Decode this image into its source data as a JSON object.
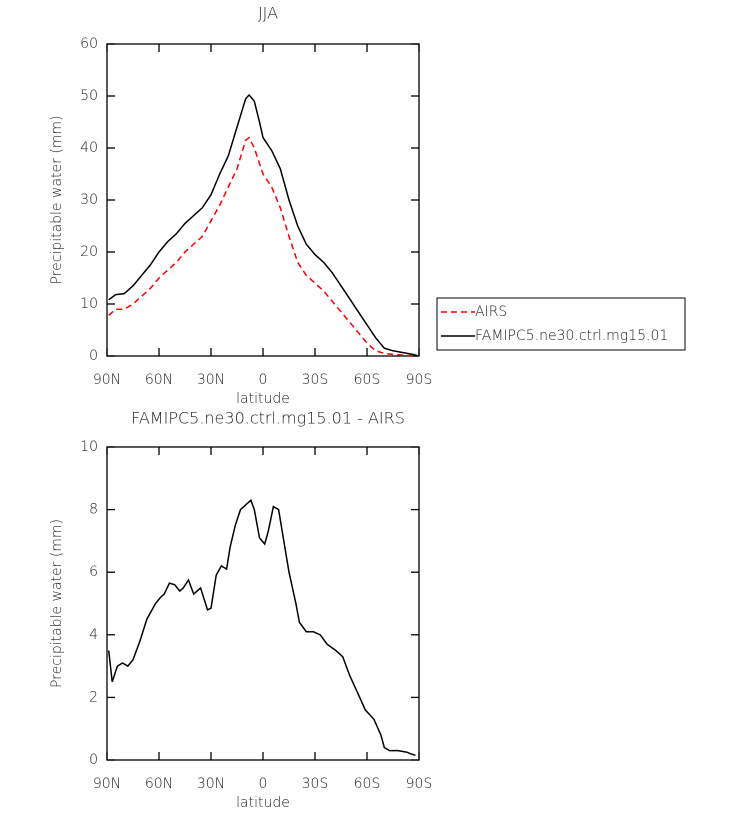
{
  "chart_data": [
    {
      "type": "line",
      "title": "JJA",
      "xlabel": "latitude",
      "ylabel": "Precipitable water (mm)",
      "x": [
        89,
        85,
        80,
        75,
        70,
        65,
        60,
        55,
        50,
        45,
        40,
        35,
        30,
        25,
        20,
        15,
        10,
        8,
        5,
        2,
        0,
        -5,
        -10,
        -15,
        -20,
        -25,
        -30,
        -35,
        -40,
        -45,
        -50,
        -55,
        -60,
        -65,
        -70,
        -75,
        -80,
        -85,
        -89
      ],
      "series": [
        {
          "name": "AIRS",
          "color": "#ff0000",
          "linestyle": "dashed",
          "values": [
            7.8,
            9,
            9,
            10,
            11.5,
            13,
            15,
            16.5,
            18,
            20,
            21.5,
            23,
            26,
            29,
            32.5,
            36,
            41.5,
            42,
            40,
            37,
            35,
            32.5,
            28.5,
            23,
            18,
            15.5,
            14,
            12.5,
            10.5,
            8.5,
            6.5,
            4.5,
            2.5,
            1,
            0.5,
            0.3,
            0.2,
            0.1,
            0
          ]
        },
        {
          "name": "FAMIPC5.ne30.ctrl.mg15.01",
          "color": "#000000",
          "linestyle": "solid",
          "values": [
            10.8,
            11.8,
            12,
            13.5,
            15.5,
            17.5,
            20,
            22,
            23.5,
            25.5,
            27,
            28.5,
            31,
            35,
            38.5,
            44,
            49.5,
            50.2,
            49,
            45,
            42,
            39.5,
            36,
            30,
            25,
            21.5,
            19.5,
            18,
            16,
            13.5,
            11,
            8.5,
            6,
            3.5,
            1.5,
            1,
            0.7,
            0.4,
            0.1
          ]
        }
      ],
      "xlim": [
        90,
        -90
      ],
      "xticks": [
        {
          "value": 90,
          "label": "90N"
        },
        {
          "value": 60,
          "label": "60N"
        },
        {
          "value": 30,
          "label": "30N"
        },
        0,
        {
          "value": -30,
          "label": "30S"
        },
        {
          "value": -60,
          "label": "60S"
        },
        {
          "value": -90,
          "label": "90S"
        }
      ],
      "ylim": [
        0,
        60
      ],
      "yticks": [
        0,
        10,
        20,
        30,
        40,
        50,
        60
      ],
      "grid": false,
      "legend": "right"
    },
    {
      "type": "line",
      "title": "FAMIPC5.ne30.ctrl.mg15.01 - AIRS",
      "xlabel": "latitude",
      "ylabel": "Precipitable water (mm)",
      "x": [
        89,
        87,
        84,
        81,
        78,
        75,
        71,
        67,
        62,
        59,
        57,
        54,
        51,
        48,
        46,
        43,
        40,
        36,
        32,
        30,
        27,
        24,
        21,
        19,
        16,
        13,
        9,
        7,
        5,
        2,
        -1,
        -3,
        -6,
        -9,
        -12,
        -15,
        -19,
        -21,
        -25,
        -29,
        -33,
        -37,
        -42,
        -46,
        -50,
        -55,
        -59,
        -64,
        -68,
        -70,
        -73,
        -78,
        -83,
        -85,
        -88
      ],
      "series": [
        {
          "name": "FAMIPC5.ne30.ctrl.mg15.01 - AIRS",
          "color": "#000000",
          "linestyle": "solid",
          "values": [
            3.5,
            2.5,
            3.0,
            3.1,
            3.0,
            3.2,
            3.8,
            4.5,
            5.0,
            5.2,
            5.3,
            5.65,
            5.6,
            5.4,
            5.5,
            5.75,
            5.3,
            5.5,
            4.8,
            4.85,
            5.9,
            6.2,
            6.1,
            6.8,
            7.5,
            8.0,
            8.2,
            8.3,
            8.0,
            7.1,
            6.9,
            7.3,
            8.1,
            8.0,
            7.0,
            6.0,
            5.0,
            4.4,
            4.1,
            4.1,
            4.0,
            3.7,
            3.5,
            3.3,
            2.7,
            2.1,
            1.6,
            1.3,
            0.8,
            0.4,
            0.3,
            0.3,
            0.25,
            0.2,
            0.15
          ]
        }
      ],
      "xlim": [
        90,
        -90
      ],
      "xticks": [
        {
          "value": 90,
          "label": "90N"
        },
        {
          "value": 60,
          "label": "60N"
        },
        {
          "value": 30,
          "label": "30N"
        },
        0,
        {
          "value": -30,
          "label": "30S"
        },
        {
          "value": -60,
          "label": "60S"
        },
        {
          "value": -90,
          "label": "90S"
        }
      ],
      "ylim": [
        0,
        10
      ],
      "yticks": [
        0,
        2,
        4,
        6,
        8,
        10
      ],
      "grid": false
    }
  ]
}
